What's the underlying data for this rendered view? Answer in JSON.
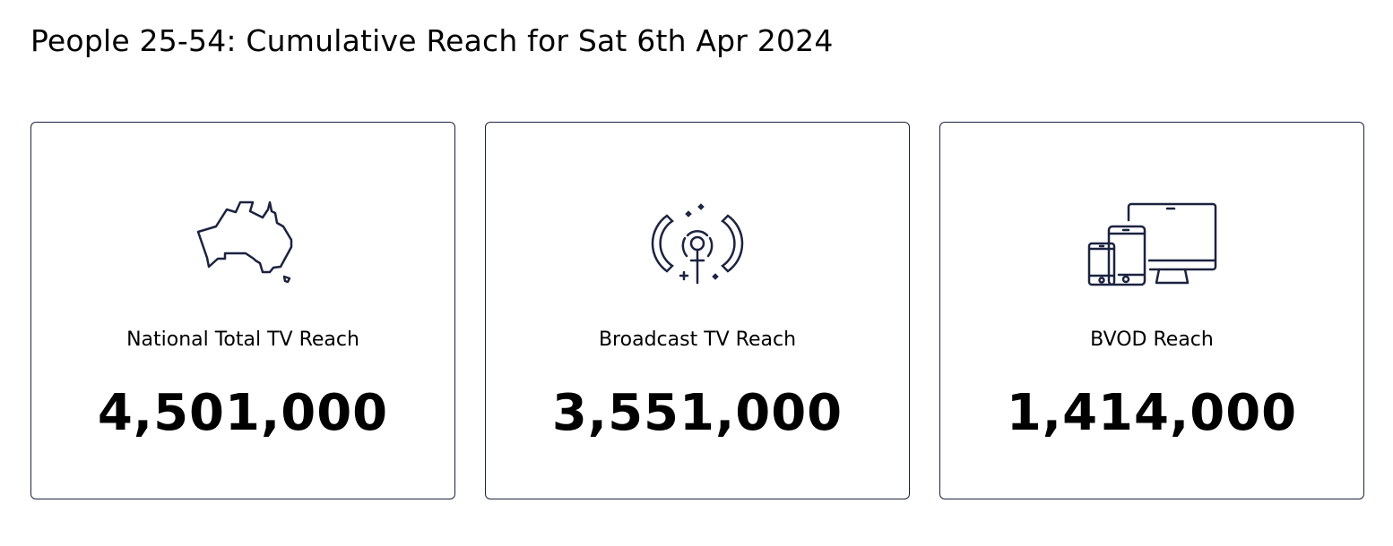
{
  "header": {
    "title": "People 25-54: Cumulative Reach for Sat 6th Apr 2024"
  },
  "colors": {
    "icon_stroke": "#1c2340",
    "card_border": "#1c2340"
  },
  "cards": [
    {
      "icon": "australia-map-icon",
      "label": "National Total TV Reach",
      "value": "4,501,000"
    },
    {
      "icon": "broadcast-antenna-icon",
      "label": "Broadcast TV Reach",
      "value": "3,551,000"
    },
    {
      "icon": "devices-icon",
      "label": "BVOD Reach",
      "value": "1,414,000"
    }
  ]
}
